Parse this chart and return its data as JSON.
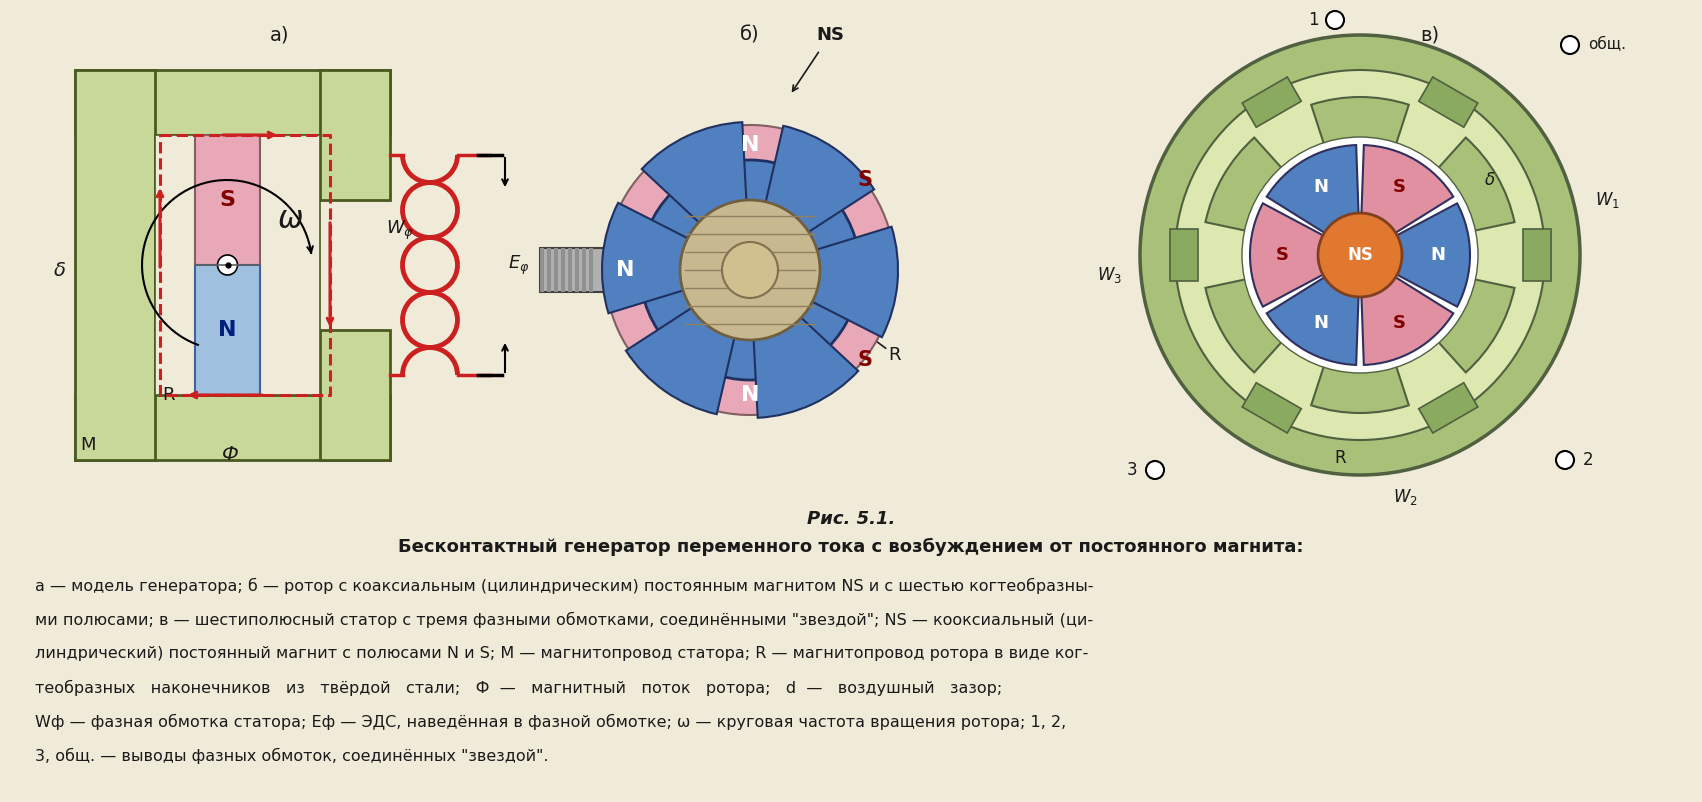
{
  "bg_color": "#f0ead8",
  "title": "Рис. 5.1.",
  "subtitle": "Бесконтактный генератор переменного тока с возбуждением от постоянного магнита:",
  "description_lines": [
    "а — модель генератора; б — ротор с коаксиальным (цилиндрическим) постоянным магнитом NS и с шестью когтеобразны-",
    "ми полюсами; в — шестиполюсный статор с тремя фазными обмотками, соединёнными \"звездой\"; NS — кооксиальный (ци-",
    "линдрический) постоянный магнит с полюсами N и S; М — магнитопровод статора; R — магнитопровод ротора в виде ког-",
    "теобразных   наконечников   из   твёрдой   стали;   Ф  —   магнитный   поток   ротора;   d  —   воздушный   зазор;",
    "Wф — фазная обмотка статора; Еф — ЭДС, наведённая в фазной обмотке; ω — круговая частота вращения ротора; 1, 2,",
    "3, общ. — выводы фазных обмоток, соединённых \"звездой\"."
  ],
  "panel_a_label": "а)",
  "panel_b_label": "б)",
  "panel_c_label": "в)",
  "green_outer": "#c8d898",
  "pink_color": "#e8a8b8",
  "blue_color": "#5080c0",
  "light_blue": "#a0c0e0",
  "red_color": "#cc2020",
  "gray_color": "#909090",
  "magnet_N_color": "#5080c0",
  "magnet_S_color": "#e090a0",
  "rotor_center_color": "#e07830",
  "stator_green": "#a8c078",
  "text_color": "#1a1a1a",
  "dashed_red": "#cc2020"
}
